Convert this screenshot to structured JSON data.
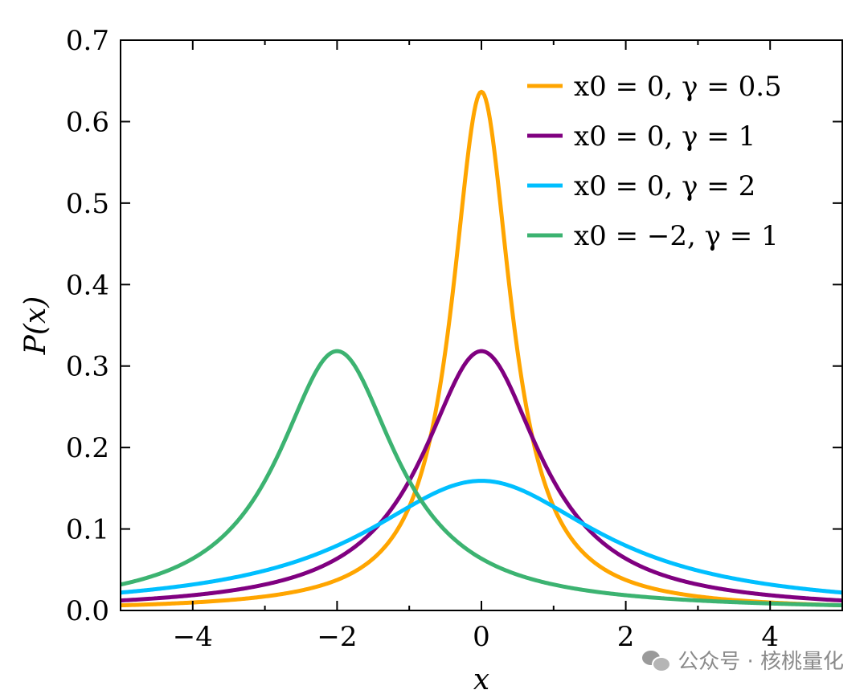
{
  "chart_data": {
    "type": "line",
    "xlabel": "x",
    "ylabel": "P(x)",
    "xlim": [
      -5,
      5
    ],
    "ylim": [
      0,
      0.7
    ],
    "xticks": [
      -4,
      -2,
      0,
      2,
      4
    ],
    "xtick_labels": [
      "−4",
      "−2",
      "0",
      "2",
      "4"
    ],
    "yticks": [
      0.0,
      0.1,
      0.2,
      0.3,
      0.4,
      0.5,
      0.6,
      0.7
    ],
    "ytick_labels": [
      "0.0",
      "0.1",
      "0.2",
      "0.3",
      "0.4",
      "0.5",
      "0.6",
      "0.7"
    ],
    "grid": false,
    "legend_position": "top-right",
    "series": [
      {
        "name": "x0 = 0, γ = 0.5",
        "x0": 0,
        "gamma": 0.5,
        "color": "#ffa500",
        "peak": 0.637
      },
      {
        "name": "x0 = 0, γ = 1",
        "x0": 0,
        "gamma": 1,
        "color": "#800080",
        "peak": 0.318
      },
      {
        "name": "x0 = 0, γ = 2",
        "x0": 0,
        "gamma": 2,
        "color": "#00bfff",
        "peak": 0.159
      },
      {
        "name": "x0 = −2, γ = 1",
        "x0": -2,
        "gamma": 1,
        "color": "#3cb371",
        "peak": 0.318
      }
    ]
  },
  "watermark": {
    "text": "公众号 · 核桃量化"
  }
}
